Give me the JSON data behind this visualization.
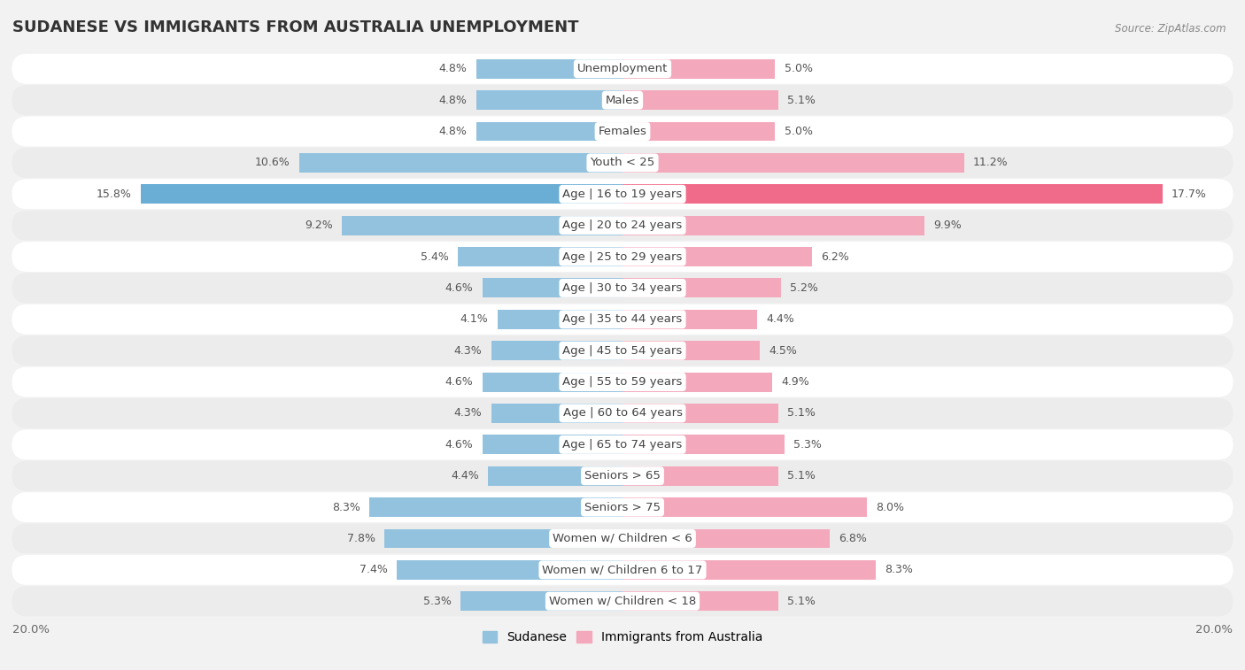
{
  "title": "SUDANESE VS IMMIGRANTS FROM AUSTRALIA UNEMPLOYMENT",
  "source": "Source: ZipAtlas.com",
  "categories": [
    "Unemployment",
    "Males",
    "Females",
    "Youth < 25",
    "Age | 16 to 19 years",
    "Age | 20 to 24 years",
    "Age | 25 to 29 years",
    "Age | 30 to 34 years",
    "Age | 35 to 44 years",
    "Age | 45 to 54 years",
    "Age | 55 to 59 years",
    "Age | 60 to 64 years",
    "Age | 65 to 74 years",
    "Seniors > 65",
    "Seniors > 75",
    "Women w/ Children < 6",
    "Women w/ Children 6 to 17",
    "Women w/ Children < 18"
  ],
  "sudanese": [
    4.8,
    4.8,
    4.8,
    10.6,
    15.8,
    9.2,
    5.4,
    4.6,
    4.1,
    4.3,
    4.6,
    4.3,
    4.6,
    4.4,
    8.3,
    7.8,
    7.4,
    5.3
  ],
  "australia": [
    5.0,
    5.1,
    5.0,
    11.2,
    17.7,
    9.9,
    6.2,
    5.2,
    4.4,
    4.5,
    4.9,
    5.1,
    5.3,
    5.1,
    8.0,
    6.8,
    8.3,
    5.1
  ],
  "sudanese_color": "#92C2DE",
  "australia_color": "#F4A8BC",
  "highlight_sudanese_color": "#6AAED6",
  "highlight_australia_color": "#F06B8A",
  "background_color": "#f2f2f2",
  "row_bg_white": "#FFFFFF",
  "row_bg_gray": "#ECECEC",
  "max_value": 20.0,
  "legend_sudanese": "Sudanese",
  "legend_australia": "Immigrants from Australia",
  "axis_label_left": "20.0%",
  "axis_label_right": "20.0%",
  "title_fontsize": 13,
  "label_fontsize": 9.5,
  "value_fontsize": 9.0
}
